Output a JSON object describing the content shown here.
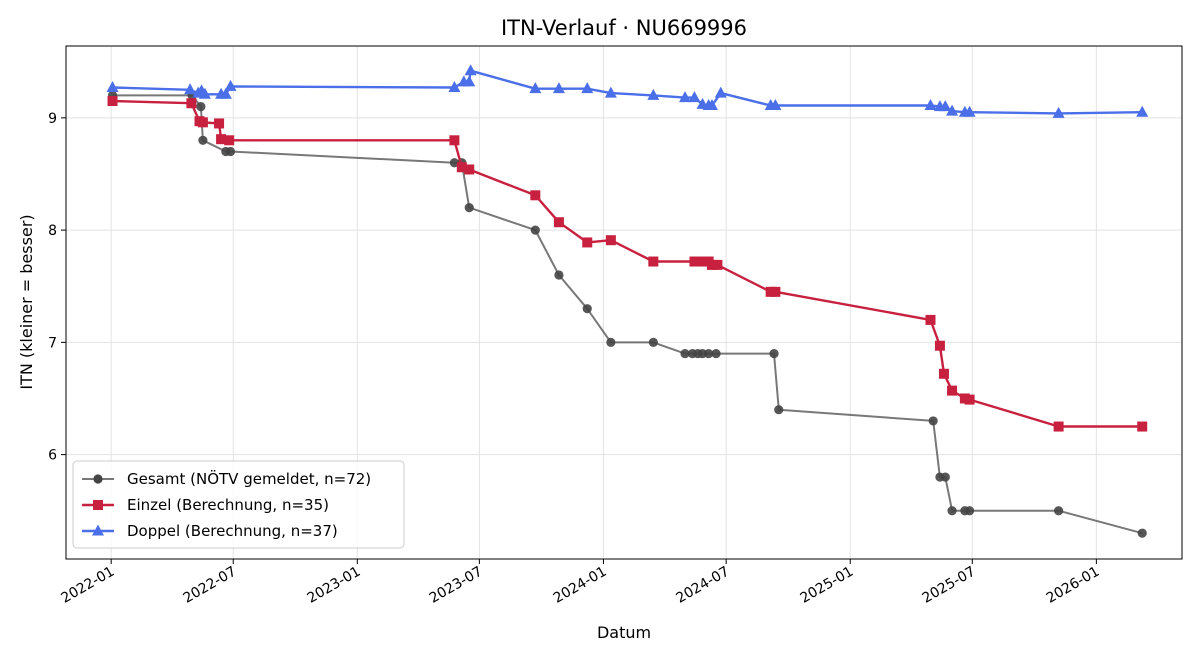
{
  "chart_data": {
    "type": "line",
    "title": "ITN-Verlauf · NU669996",
    "xlabel": "Datum",
    "ylabel": "ITN  (kleiner = besser)",
    "xlim": [
      "2021-10-26",
      "2026-05-08"
    ],
    "ylim": [
      5.07,
      9.64
    ],
    "x_ticks": [
      "2022-01-01",
      "2022-07-01",
      "2023-01-01",
      "2023-07-01",
      "2024-01-01",
      "2024-07-01",
      "2025-01-01",
      "2025-07-01",
      "2026-01-01"
    ],
    "x_tick_labels": [
      "2022-01",
      "2022-07",
      "2023-01",
      "2023-07",
      "2024-01",
      "2024-07",
      "2025-01",
      "2025-07",
      "2026-01"
    ],
    "y_ticks": [
      6,
      7,
      8,
      9
    ],
    "y_tick_labels": [
      "6",
      "7",
      "8",
      "9"
    ],
    "grid": true,
    "legend": "lower-left",
    "series": [
      {
        "name": "Gesamt (NÖTV gemeldet, n=72)",
        "color": "#444444",
        "marker": "circle",
        "points": [
          [
            "2022-01-03",
            9.2
          ],
          [
            "2022-05-01",
            9.2
          ],
          [
            "2022-05-14",
            9.1
          ],
          [
            "2022-05-17",
            8.8
          ],
          [
            "2022-06-20",
            8.7
          ],
          [
            "2022-06-27",
            8.7
          ],
          [
            "2023-05-25",
            8.6
          ],
          [
            "2023-06-05",
            8.6
          ],
          [
            "2023-06-16",
            8.2
          ],
          [
            "2023-09-22",
            8.0
          ],
          [
            "2023-10-27",
            7.6
          ],
          [
            "2023-12-08",
            7.3
          ],
          [
            "2024-01-12",
            7.0
          ],
          [
            "2024-03-15",
            7.0
          ],
          [
            "2024-05-01",
            6.9
          ],
          [
            "2024-05-12",
            6.9
          ],
          [
            "2024-05-20",
            6.9
          ],
          [
            "2024-05-27",
            6.9
          ],
          [
            "2024-06-05",
            6.9
          ],
          [
            "2024-06-16",
            6.9
          ],
          [
            "2024-09-10",
            6.9
          ],
          [
            "2024-09-17",
            6.4
          ],
          [
            "2025-05-04",
            6.3
          ],
          [
            "2025-05-14",
            5.8
          ],
          [
            "2025-05-22",
            5.8
          ],
          [
            "2025-06-01",
            5.5
          ],
          [
            "2025-06-20",
            5.5
          ],
          [
            "2025-06-27",
            5.5
          ],
          [
            "2025-11-06",
            5.5
          ],
          [
            "2026-03-10",
            5.3
          ]
        ]
      },
      {
        "name": "Einzel (Berechnung, n=35)",
        "color": "#c8203f",
        "marker": "square",
        "points": [
          [
            "2022-01-03",
            9.15
          ],
          [
            "2022-04-30",
            9.13
          ],
          [
            "2022-05-12",
            8.97
          ],
          [
            "2022-05-17",
            8.96
          ],
          [
            "2022-06-10",
            8.95
          ],
          [
            "2022-06-13",
            8.81
          ],
          [
            "2022-06-25",
            8.8
          ],
          [
            "2023-05-25",
            8.8
          ],
          [
            "2023-06-05",
            8.56
          ],
          [
            "2023-06-16",
            8.54
          ],
          [
            "2023-09-22",
            8.31
          ],
          [
            "2023-10-27",
            8.07
          ],
          [
            "2023-12-08",
            7.89
          ],
          [
            "2024-01-12",
            7.91
          ],
          [
            "2024-03-15",
            7.72
          ],
          [
            "2024-05-15",
            7.72
          ],
          [
            "2024-05-27",
            7.72
          ],
          [
            "2024-06-05",
            7.72
          ],
          [
            "2024-06-10",
            7.69
          ],
          [
            "2024-06-18",
            7.69
          ],
          [
            "2024-09-05",
            7.45
          ],
          [
            "2024-09-12",
            7.45
          ],
          [
            "2025-04-30",
            7.2
          ],
          [
            "2025-05-14",
            6.97
          ],
          [
            "2025-05-20",
            6.72
          ],
          [
            "2025-06-01",
            6.57
          ],
          [
            "2025-06-20",
            6.5
          ],
          [
            "2025-06-27",
            6.49
          ],
          [
            "2025-11-06",
            6.25
          ],
          [
            "2026-03-10",
            6.25
          ]
        ]
      },
      {
        "name": "Doppel (Berechnung, n=37)",
        "color": "#4a6fe8",
        "marker": "triangle",
        "points": [
          [
            "2022-01-03",
            9.27
          ],
          [
            "2022-04-28",
            9.25
          ],
          [
            "2022-05-10",
            9.22
          ],
          [
            "2022-05-15",
            9.24
          ],
          [
            "2022-05-20",
            9.21
          ],
          [
            "2022-06-13",
            9.21
          ],
          [
            "2022-06-20",
            9.21
          ],
          [
            "2022-06-27",
            9.28
          ],
          [
            "2023-05-25",
            9.27
          ],
          [
            "2023-06-08",
            9.32
          ],
          [
            "2023-06-16",
            9.32
          ],
          [
            "2023-06-18",
            9.42
          ],
          [
            "2023-09-22",
            9.26
          ],
          [
            "2023-10-27",
            9.26
          ],
          [
            "2023-12-08",
            9.26
          ],
          [
            "2024-01-12",
            9.22
          ],
          [
            "2024-03-15",
            9.2
          ],
          [
            "2024-05-01",
            9.18
          ],
          [
            "2024-05-15",
            9.18
          ],
          [
            "2024-05-27",
            9.12
          ],
          [
            "2024-06-05",
            9.11
          ],
          [
            "2024-06-10",
            9.11
          ],
          [
            "2024-06-23",
            9.22
          ],
          [
            "2024-09-05",
            9.11
          ],
          [
            "2024-09-12",
            9.11
          ],
          [
            "2025-04-30",
            9.11
          ],
          [
            "2025-05-14",
            9.1
          ],
          [
            "2025-05-22",
            9.1
          ],
          [
            "2025-06-01",
            9.06
          ],
          [
            "2025-06-20",
            9.05
          ],
          [
            "2025-06-27",
            9.05
          ],
          [
            "2025-11-06",
            9.04
          ],
          [
            "2026-03-10",
            9.05
          ]
        ]
      }
    ]
  }
}
